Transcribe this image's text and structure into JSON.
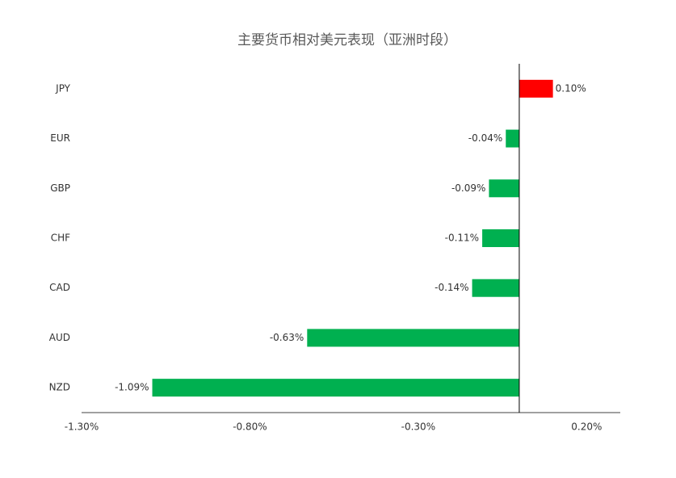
{
  "chart_data": {
    "type": "bar",
    "orientation": "horizontal",
    "title": "主要货币相对美元表现（亚洲时段）",
    "categories": [
      "JPY",
      "EUR",
      "GBP",
      "CHF",
      "CAD",
      "AUD",
      "NZD"
    ],
    "values": [
      0.1,
      -0.04,
      -0.09,
      -0.11,
      -0.14,
      -0.63,
      -1.09
    ],
    "value_labels": [
      "0.10%",
      "-0.04%",
      "-0.09%",
      "-0.11%",
      "-0.14%",
      "-0.63%",
      "-1.09%"
    ],
    "colors": [
      "#ff0000",
      "#00b050",
      "#00b050",
      "#00b050",
      "#00b050",
      "#00b050",
      "#00b050"
    ],
    "xlim": [
      -1.3,
      0.3
    ],
    "xticks": [
      {
        "value": -1.3,
        "label": "-1.30%"
      },
      {
        "value": -0.8,
        "label": "-0.80%"
      },
      {
        "value": -0.3,
        "label": "-0.30%"
      },
      {
        "value": 0.2,
        "label": "0.20%"
      }
    ],
    "grid": false
  }
}
